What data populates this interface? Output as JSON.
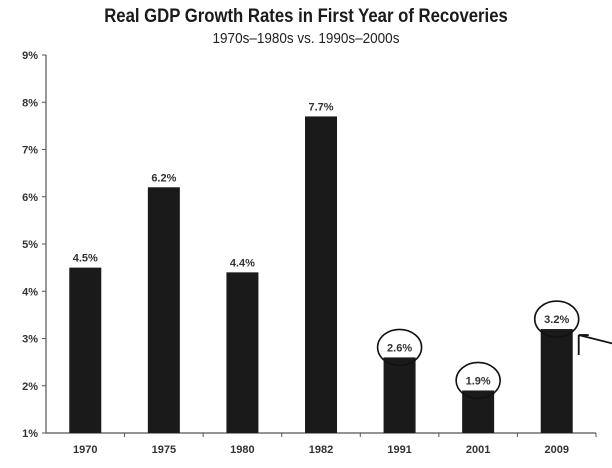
{
  "chart_data": {
    "type": "bar",
    "title": "Real GDP Growth Rates in First Year of Recoveries",
    "subtitle": "1970s–1980s vs. 1990s–2000s",
    "xlabel": "",
    "ylabel": "",
    "ylim": [
      1,
      9
    ],
    "yticks": [
      "1%",
      "2%",
      "3%",
      "4%",
      "5%",
      "6%",
      "7%",
      "8%",
      "9%"
    ],
    "categories": [
      "1970",
      "1975",
      "1980",
      "1982",
      "1991",
      "2001",
      "2009"
    ],
    "values": [
      4.5,
      6.2,
      4.4,
      7.7,
      2.6,
      1.9,
      3.2
    ],
    "data_labels": [
      "4.5%",
      "6.2%",
      "4.4%",
      "7.7%",
      "2.6%",
      "1.9%",
      "3.2%"
    ],
    "annotations": {
      "circled_labels": [
        "1991",
        "2001",
        "2009"
      ],
      "arrow_points_to": "2009"
    },
    "grid": false,
    "legend": "none",
    "bar_color": "#1a1a1a"
  }
}
